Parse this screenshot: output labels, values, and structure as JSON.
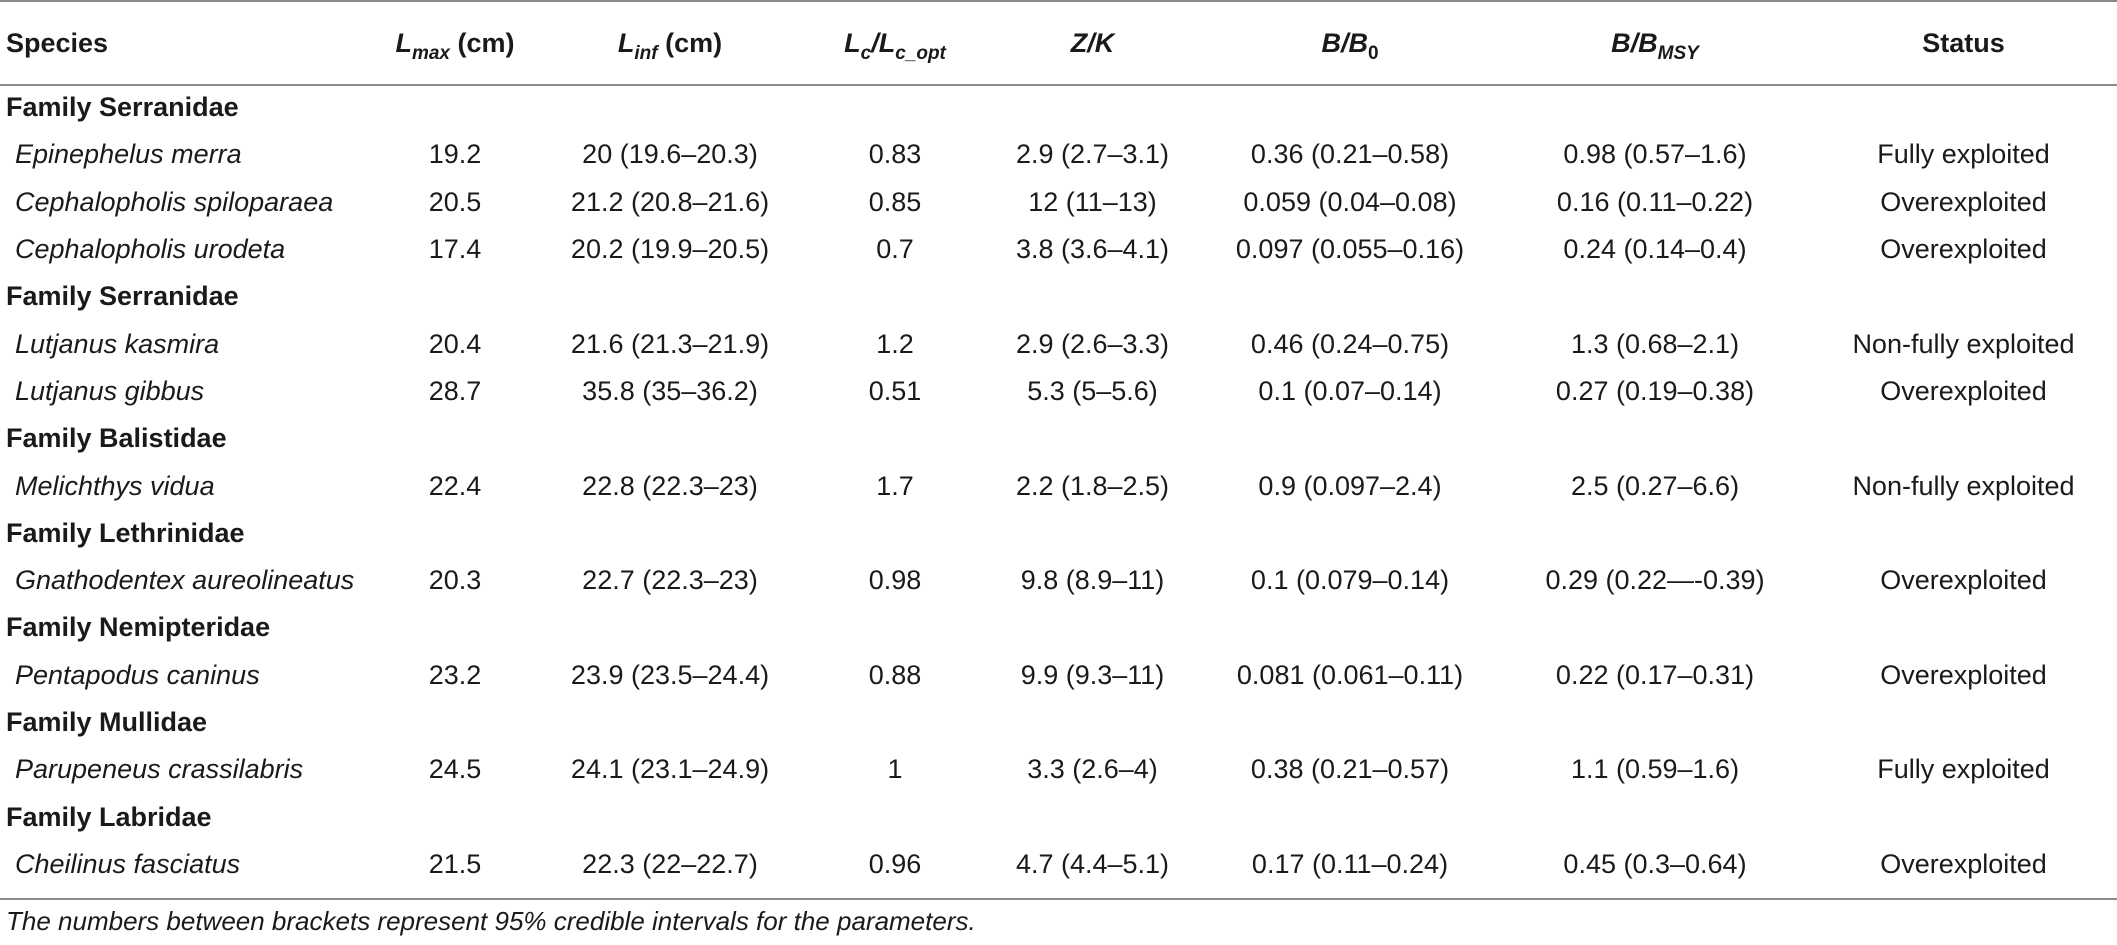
{
  "header": {
    "species": "Species",
    "lmax": {
      "main": "L",
      "sub": "max",
      "unit": " (cm)"
    },
    "linf": {
      "main": "L",
      "sub": "inf",
      "unit": " (cm)"
    },
    "lc": {
      "main1": "L",
      "sub1": "c",
      "slash": "/",
      "main2": "L",
      "sub2": "c_opt"
    },
    "zk": "Z/K",
    "bb0": {
      "main": "B/B",
      "sub": "0"
    },
    "bbmsy": {
      "main": "B/B",
      "sub": "MSY"
    },
    "status": "Status"
  },
  "rows": [
    {
      "type": "family",
      "label": "Family Serranidae"
    },
    {
      "type": "species",
      "species": "Epinephelus merra",
      "lmax": "19.2",
      "linf": "20 (19.6–20.3)",
      "lc": "0.83",
      "zk": "2.9 (2.7–3.1)",
      "bb0": "0.36 (0.21–0.58)",
      "bbmsy": "0.98 (0.57–1.6)",
      "status": "Fully exploited"
    },
    {
      "type": "species",
      "species": "Cephalopholis spiloparaea",
      "lmax": "20.5",
      "linf": "21.2 (20.8–21.6)",
      "lc": "0.85",
      "zk": "12 (11–13)",
      "bb0": "0.059 (0.04–0.08)",
      "bbmsy": "0.16 (0.11–0.22)",
      "status": "Overexploited"
    },
    {
      "type": "species",
      "species": "Cephalopholis urodeta",
      "lmax": "17.4",
      "linf": "20.2 (19.9–20.5)",
      "lc": "0.7",
      "zk": "3.8 (3.6–4.1)",
      "bb0": "0.097 (0.055–0.16)",
      "bbmsy": "0.24 (0.14–0.4)",
      "status": "Overexploited"
    },
    {
      "type": "family",
      "label": "Family Serranidae"
    },
    {
      "type": "species",
      "species": "Lutjanus kasmira",
      "lmax": "20.4",
      "linf": "21.6 (21.3–21.9)",
      "lc": "1.2",
      "zk": "2.9 (2.6–3.3)",
      "bb0": "0.46 (0.24–0.75)",
      "bbmsy": "1.3 (0.68–2.1)",
      "status": "Non-fully exploited"
    },
    {
      "type": "species",
      "species": "Lutjanus gibbus",
      "lmax": "28.7",
      "linf": "35.8 (35–36.2)",
      "lc": "0.51",
      "zk": "5.3 (5–5.6)",
      "bb0": "0.1 (0.07–0.14)",
      "bbmsy": "0.27 (0.19–0.38)",
      "status": "Overexploited"
    },
    {
      "type": "family",
      "label": "Family Balistidae"
    },
    {
      "type": "species",
      "species": "Melichthys vidua",
      "lmax": "22.4",
      "linf": "22.8 (22.3–23)",
      "lc": "1.7",
      "zk": "2.2 (1.8–2.5)",
      "bb0": "0.9 (0.097–2.4)",
      "bbmsy": "2.5 (0.27–6.6)",
      "status": "Non-fully exploited"
    },
    {
      "type": "family",
      "label": "Family Lethrinidae"
    },
    {
      "type": "species",
      "species": "Gnathodentex aureolineatus",
      "lmax": "20.3",
      "linf": "22.7 (22.3–23)",
      "lc": "0.98",
      "zk": "9.8 (8.9–11)",
      "bb0": "0.1 (0.079–0.14)",
      "bbmsy": "0.29 (0.22—-0.39)",
      "status": "Overexploited"
    },
    {
      "type": "family",
      "label": "Family Nemipteridae"
    },
    {
      "type": "species",
      "species": "Pentapodus caninus",
      "lmax": "23.2",
      "linf": "23.9 (23.5–24.4)",
      "lc": "0.88",
      "zk": "9.9 (9.3–11)",
      "bb0": "0.081 (0.061–0.11)",
      "bbmsy": "0.22 (0.17–0.31)",
      "status": "Overexploited"
    },
    {
      "type": "family",
      "label": "Family Mullidae"
    },
    {
      "type": "species",
      "species": "Parupeneus crassilabris",
      "lmax": "24.5",
      "linf": "24.1 (23.1–24.9)",
      "lc": "1",
      "zk": "3.3 (2.6–4)",
      "bb0": "0.38 (0.21–0.57)",
      "bbmsy": "1.1 (0.59–1.6)",
      "status": "Fully exploited"
    },
    {
      "type": "family",
      "label": "Family Labridae"
    },
    {
      "type": "species",
      "species": "Cheilinus fasciatus",
      "lmax": "21.5",
      "linf": "22.3 (22–22.7)",
      "lc": "0.96",
      "zk": "4.7 (4.4–5.1)",
      "bb0": "0.17 (0.11–0.24)",
      "bbmsy": "0.45 (0.3–0.64)",
      "status": "Overexploited"
    }
  ],
  "footnote": "The numbers between brackets represent 95% credible intervals for the parameters."
}
